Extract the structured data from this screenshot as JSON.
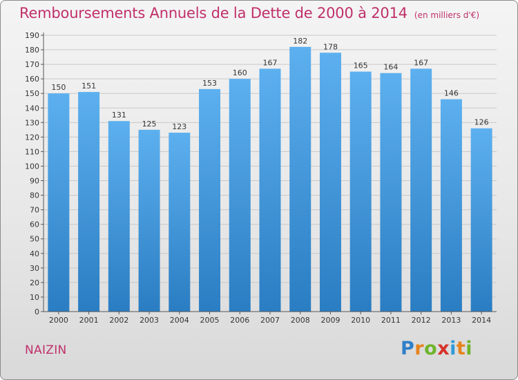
{
  "title": "Remboursements Annuels de la Dette de 2000 à 2014",
  "unit_note": "(en milliers d'€)",
  "commune": "NAIZIN",
  "brand": {
    "letters": [
      "P",
      "r",
      "o",
      "x",
      "i",
      "t",
      "i"
    ],
    "colors": [
      "#2f7fc8",
      "#e7831c",
      "#6fb42c",
      "#d6322a",
      "#2f9ad8",
      "#e7831c",
      "#6fb42c"
    ]
  },
  "colors": {
    "bar_top": "#5db0ef",
    "bar_bottom": "#2a7dc2",
    "title": "#c0306a",
    "grid": "#c8c8c8"
  },
  "chart_data": {
    "type": "bar",
    "title": "Remboursements Annuels de la Dette de 2000 à 2014",
    "xlabel": "",
    "ylabel": "",
    "categories": [
      "2000",
      "2001",
      "2002",
      "2003",
      "2004",
      "2005",
      "2006",
      "2007",
      "2008",
      "2009",
      "2010",
      "2011",
      "2012",
      "2013",
      "2014"
    ],
    "values": [
      150,
      151,
      131,
      125,
      123,
      153,
      160,
      167,
      182,
      178,
      165,
      164,
      167,
      146,
      126
    ],
    "ylim": [
      0,
      190
    ],
    "ytick_step": 10,
    "grid": true,
    "data_labels": true
  }
}
